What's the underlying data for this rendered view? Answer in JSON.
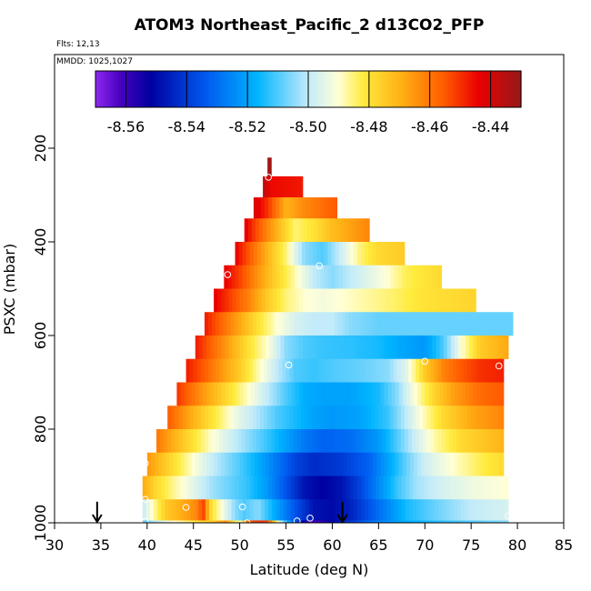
{
  "chart_data": {
    "type": "heatmap",
    "title": "ATOM3 Northeast_Pacific_2 d13CO2_PFP",
    "annotations": {
      "flights": "Flts: 12,13",
      "dates": "MMDD: 1025,1027"
    },
    "xlabel": "Latitude (deg N)",
    "ylabel": "PSXC (mbar)",
    "xlim": [
      30,
      85
    ],
    "ylim": [
      1000,
      0
    ],
    "x_ticks": [
      30,
      35,
      40,
      45,
      50,
      55,
      60,
      65,
      70,
      75,
      80,
      85
    ],
    "y_ticks": [
      200,
      400,
      600,
      800,
      1000
    ],
    "colorbar": {
      "range": [
        -8.57,
        -8.43
      ],
      "ticks": [
        -8.56,
        -8.54,
        -8.52,
        -8.5,
        -8.48,
        -8.46,
        -8.44
      ],
      "tick_labels": [
        "-8.56",
        "-8.54",
        "-8.52",
        "-8.50",
        "-8.48",
        "-8.46",
        "-8.44"
      ]
    },
    "bands": [
      {
        "p_top": 220,
        "p_bot": 260,
        "lat_start": 53.0,
        "lat_end": 53.4,
        "vals": [
          [
            53.0,
            -8.432
          ],
          [
            53.4,
            -8.432
          ]
        ]
      },
      {
        "p_top": 260,
        "p_bot": 305,
        "lat_start": 52.5,
        "lat_end": 56.8,
        "vals": [
          [
            52.5,
            -8.436
          ],
          [
            53.5,
            -8.445
          ],
          [
            56.8,
            -8.447
          ]
        ]
      },
      {
        "p_top": 305,
        "p_bot": 350,
        "lat_start": 51.5,
        "lat_end": 60.5,
        "vals": [
          [
            51.5,
            -8.44
          ],
          [
            53,
            -8.45
          ],
          [
            55,
            -8.47
          ],
          [
            57,
            -8.463
          ],
          [
            60.5,
            -8.455
          ]
        ]
      },
      {
        "p_top": 350,
        "p_bot": 400,
        "lat_start": 50.5,
        "lat_end": 64.0,
        "vals": [
          [
            50.5,
            -8.442
          ],
          [
            52,
            -8.455
          ],
          [
            54,
            -8.47
          ],
          [
            56,
            -8.485
          ],
          [
            58,
            -8.48
          ],
          [
            60,
            -8.472
          ],
          [
            64,
            -8.462
          ]
        ]
      },
      {
        "p_top": 400,
        "p_bot": 450,
        "lat_start": 49.5,
        "lat_end": 67.8,
        "vals": [
          [
            49.5,
            -8.443
          ],
          [
            51,
            -8.455
          ],
          [
            53,
            -8.47
          ],
          [
            55,
            -8.485
          ],
          [
            57,
            -8.505
          ],
          [
            59,
            -8.51
          ],
          [
            61,
            -8.498
          ],
          [
            63,
            -8.485
          ],
          [
            65,
            -8.478
          ],
          [
            67.8,
            -8.475
          ]
        ]
      },
      {
        "p_top": 450,
        "p_bot": 500,
        "lat_start": 48.3,
        "lat_end": 71.8,
        "vals": [
          [
            48.3,
            -8.443
          ],
          [
            50,
            -8.452
          ],
          [
            52,
            -8.465
          ],
          [
            54,
            -8.477
          ],
          [
            56,
            -8.488
          ],
          [
            58,
            -8.5
          ],
          [
            60,
            -8.505
          ],
          [
            62,
            -8.5
          ],
          [
            64,
            -8.495
          ],
          [
            66,
            -8.49
          ],
          [
            68,
            -8.483
          ],
          [
            71.8,
            -8.478
          ]
        ]
      },
      {
        "p_top": 500,
        "p_bot": 550,
        "lat_start": 47.2,
        "lat_end": 75.5,
        "vals": [
          [
            47.2,
            -8.443
          ],
          [
            49,
            -8.452
          ],
          [
            51,
            -8.462
          ],
          [
            53,
            -8.475
          ],
          [
            55,
            -8.485
          ],
          [
            57,
            -8.49
          ],
          [
            59,
            -8.492
          ],
          [
            61,
            -8.49
          ],
          [
            63,
            -8.488
          ],
          [
            66,
            -8.485
          ],
          [
            70,
            -8.48
          ],
          [
            75.5,
            -8.477
          ]
        ]
      },
      {
        "p_top": 550,
        "p_bot": 600,
        "lat_start": 46.2,
        "lat_end": 79.5,
        "vals": [
          [
            46.2,
            -8.447
          ],
          [
            48,
            -8.457
          ],
          [
            50,
            -8.468
          ],
          [
            52,
            -8.48
          ],
          [
            54,
            -8.49
          ],
          [
            56,
            -8.497
          ],
          [
            58,
            -8.5
          ],
          [
            60,
            -8.5
          ],
          [
            62,
            -8.505
          ],
          [
            65,
            -8.508
          ],
          [
            70,
            -8.508
          ],
          [
            75,
            -8.508
          ],
          [
            79.5,
            -8.508
          ]
        ]
      },
      {
        "p_top": 600,
        "p_bot": 650,
        "lat_start": 45.2,
        "lat_end": 79.0,
        "vals": [
          [
            45.2,
            -8.447
          ],
          [
            47,
            -8.457
          ],
          [
            49,
            -8.468
          ],
          [
            51,
            -8.48
          ],
          [
            53,
            -8.49
          ],
          [
            55,
            -8.505
          ],
          [
            57,
            -8.51
          ],
          [
            59,
            -8.512
          ],
          [
            62,
            -8.513
          ],
          [
            65,
            -8.515
          ],
          [
            68,
            -8.52
          ],
          [
            70,
            -8.522
          ],
          [
            72,
            -8.51
          ],
          [
            74,
            -8.49
          ],
          [
            76,
            -8.475
          ],
          [
            79,
            -8.468
          ]
        ]
      },
      {
        "p_top": 650,
        "p_bot": 700,
        "lat_start": 44.2,
        "lat_end": 78.5,
        "vals": [
          [
            44.2,
            -8.447
          ],
          [
            46,
            -8.455
          ],
          [
            48,
            -8.465
          ],
          [
            50,
            -8.475
          ],
          [
            52,
            -8.488
          ],
          [
            54,
            -8.5
          ],
          [
            56,
            -8.51
          ],
          [
            58,
            -8.512
          ],
          [
            60,
            -8.51
          ],
          [
            63,
            -8.508
          ],
          [
            66,
            -8.505
          ],
          [
            68,
            -8.495
          ],
          [
            70,
            -8.475
          ],
          [
            72,
            -8.462
          ],
          [
            74,
            -8.455
          ],
          [
            76,
            -8.45
          ],
          [
            78.5,
            -8.448
          ]
        ]
      },
      {
        "p_top": 700,
        "p_bot": 750,
        "lat_start": 43.2,
        "lat_end": 78.5,
        "vals": [
          [
            43.2,
            -8.45
          ],
          [
            45,
            -8.46
          ],
          [
            47,
            -8.47
          ],
          [
            49,
            -8.48
          ],
          [
            51,
            -8.49
          ],
          [
            53,
            -8.5
          ],
          [
            55,
            -8.51
          ],
          [
            57,
            -8.518
          ],
          [
            59,
            -8.52
          ],
          [
            62,
            -8.52
          ],
          [
            65,
            -8.515
          ],
          [
            67,
            -8.505
          ],
          [
            69,
            -8.49
          ],
          [
            71,
            -8.477
          ],
          [
            73,
            -8.467
          ],
          [
            76,
            -8.458
          ],
          [
            78.5,
            -8.455
          ]
        ]
      },
      {
        "p_top": 750,
        "p_bot": 800,
        "lat_start": 42.2,
        "lat_end": 78.5,
        "vals": [
          [
            42.2,
            -8.455
          ],
          [
            44,
            -8.465
          ],
          [
            46,
            -8.475
          ],
          [
            48,
            -8.485
          ],
          [
            50,
            -8.495
          ],
          [
            52,
            -8.502
          ],
          [
            54,
            -8.51
          ],
          [
            56,
            -8.515
          ],
          [
            58,
            -8.52
          ],
          [
            60,
            -8.522
          ],
          [
            63,
            -8.52
          ],
          [
            66,
            -8.512
          ],
          [
            68,
            -8.5
          ],
          [
            70,
            -8.488
          ],
          [
            72,
            -8.478
          ],
          [
            75,
            -8.468
          ],
          [
            78.5,
            -8.462
          ]
        ]
      },
      {
        "p_top": 800,
        "p_bot": 850,
        "lat_start": 41.0,
        "lat_end": 78.5,
        "vals": [
          [
            41,
            -8.46
          ],
          [
            43,
            -8.47
          ],
          [
            45,
            -8.48
          ],
          [
            47,
            -8.49
          ],
          [
            49,
            -8.498
          ],
          [
            51,
            -8.505
          ],
          [
            53,
            -8.512
          ],
          [
            55,
            -8.52
          ],
          [
            57,
            -8.528
          ],
          [
            59,
            -8.532
          ],
          [
            62,
            -8.53
          ],
          [
            65,
            -8.522
          ],
          [
            67,
            -8.51
          ],
          [
            69,
            -8.498
          ],
          [
            71,
            -8.488
          ],
          [
            74,
            -8.478
          ],
          [
            78.5,
            -8.47
          ]
        ]
      },
      {
        "p_top": 850,
        "p_bot": 900,
        "lat_start": 40.0,
        "lat_end": 78.5,
        "vals": [
          [
            40,
            -8.465
          ],
          [
            42,
            -8.475
          ],
          [
            44,
            -8.485
          ],
          [
            46,
            -8.495
          ],
          [
            48,
            -8.503
          ],
          [
            50,
            -8.51
          ],
          [
            52,
            -8.518
          ],
          [
            54,
            -8.528
          ],
          [
            56,
            -8.538
          ],
          [
            58,
            -8.543
          ],
          [
            61,
            -8.54
          ],
          [
            64,
            -8.532
          ],
          [
            66,
            -8.52
          ],
          [
            68,
            -8.508
          ],
          [
            70,
            -8.498
          ],
          [
            73,
            -8.49
          ],
          [
            76,
            -8.483
          ],
          [
            78.5,
            -8.478
          ]
        ]
      },
      {
        "p_top": 900,
        "p_bot": 950,
        "lat_start": 39.5,
        "lat_end": 79.0,
        "vals": [
          [
            39.5,
            -8.468
          ],
          [
            41,
            -8.478
          ],
          [
            43,
            -8.487
          ],
          [
            45,
            -8.495
          ],
          [
            47,
            -8.503
          ],
          [
            49,
            -8.508
          ],
          [
            51,
            -8.513
          ],
          [
            53,
            -8.522
          ],
          [
            55,
            -8.535
          ],
          [
            57,
            -8.548
          ],
          [
            59,
            -8.552
          ],
          [
            61,
            -8.548
          ],
          [
            63,
            -8.538
          ],
          [
            65,
            -8.525
          ],
          [
            67,
            -8.512
          ],
          [
            69,
            -8.503
          ],
          [
            72,
            -8.497
          ],
          [
            75,
            -8.493
          ],
          [
            79,
            -8.49
          ]
        ]
      },
      {
        "p_top": 950,
        "p_bot": 995,
        "lat_start": 39.5,
        "lat_end": 79.0,
        "vals": [
          [
            39.5,
            -8.5
          ],
          [
            40.5,
            -8.49
          ],
          [
            42,
            -8.475
          ],
          [
            44,
            -8.468
          ],
          [
            45.5,
            -8.462
          ],
          [
            46,
            -8.45
          ],
          [
            46.8,
            -8.478
          ],
          [
            48,
            -8.49
          ],
          [
            49.5,
            -8.505
          ],
          [
            50.5,
            -8.51
          ],
          [
            52,
            -8.505
          ],
          [
            54,
            -8.52
          ],
          [
            56,
            -8.535
          ],
          [
            58,
            -8.548
          ],
          [
            60,
            -8.55
          ],
          [
            62,
            -8.545
          ],
          [
            64,
            -8.535
          ],
          [
            66,
            -8.525
          ],
          [
            68,
            -8.515
          ],
          [
            71,
            -8.508
          ],
          [
            75,
            -8.5
          ],
          [
            79,
            -8.497
          ]
        ]
      },
      {
        "p_top": 995,
        "p_bot": 1000,
        "lat_start": 39.5,
        "lat_end": 79.0,
        "vals": [
          [
            39.5,
            -8.51
          ],
          [
            41,
            -8.5
          ],
          [
            43,
            -8.49
          ],
          [
            45,
            -8.483
          ],
          [
            47,
            -8.475
          ],
          [
            48.5,
            -8.465
          ],
          [
            50,
            -8.49
          ],
          [
            51,
            -8.455
          ],
          [
            52,
            -8.45
          ],
          [
            53,
            -8.452
          ],
          [
            54.5,
            -8.5
          ],
          [
            56,
            -8.535
          ],
          [
            57.5,
            -8.563
          ],
          [
            59,
            -8.558
          ],
          [
            61,
            -8.545
          ],
          [
            63,
            -8.535
          ],
          [
            65,
            -8.525
          ],
          [
            68,
            -8.518
          ],
          [
            72,
            -8.512
          ],
          [
            76,
            -8.508
          ],
          [
            79,
            -8.505
          ]
        ]
      }
    ],
    "sample_points": [
      {
        "lat": 53.1,
        "p": 262
      },
      {
        "lat": 48.7,
        "p": 470
      },
      {
        "lat": 58.6,
        "p": 451
      },
      {
        "lat": 55.3,
        "p": 663
      },
      {
        "lat": 70.0,
        "p": 655
      },
      {
        "lat": 78.0,
        "p": 665
      },
      {
        "lat": 39.8,
        "p": 873
      },
      {
        "lat": 39.8,
        "p": 950
      },
      {
        "lat": 44.2,
        "p": 967
      },
      {
        "lat": 50.3,
        "p": 966
      },
      {
        "lat": 39.8,
        "p": 997
      },
      {
        "lat": 50.8,
        "p": 1000
      },
      {
        "lat": 56.2,
        "p": 996
      },
      {
        "lat": 57.6,
        "p": 990
      },
      {
        "lat": 79.0,
        "p": 985
      }
    ],
    "markers": [
      {
        "type": "arrow-down",
        "lat": 34.6
      },
      {
        "type": "arrow-down",
        "lat": 61.1
      }
    ]
  }
}
